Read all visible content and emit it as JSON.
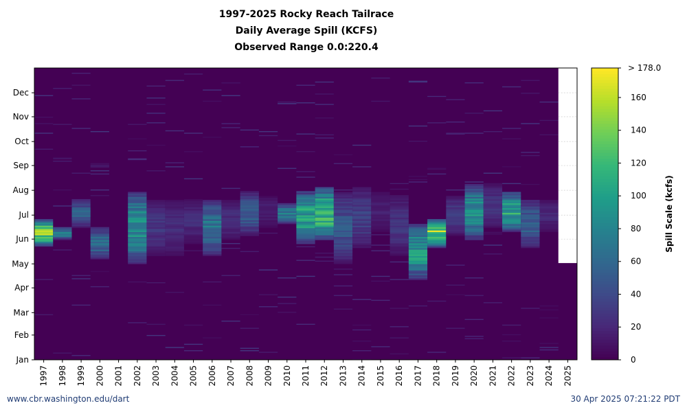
{
  "chart_data": {
    "type": "heatmap",
    "title_lines": [
      "1997-2025 Rocky Reach Tailrace",
      "Daily Average Spill (KCFS)",
      "Observed Range 0.0:220.4"
    ],
    "x_categories": [
      "1997",
      "1998",
      "1999",
      "2000",
      "2001",
      "2002",
      "2003",
      "2004",
      "2005",
      "2006",
      "2007",
      "2008",
      "2009",
      "2010",
      "2011",
      "2012",
      "2013",
      "2014",
      "2015",
      "2016",
      "2017",
      "2018",
      "2019",
      "2020",
      "2021",
      "2022",
      "2023",
      "2024",
      "2025"
    ],
    "y_ticks": [
      "Jan",
      "Feb",
      "Mar",
      "Apr",
      "May",
      "Jun",
      "Jul",
      "Aug",
      "Sep",
      "Oct",
      "Nov",
      "Dec"
    ],
    "colorbar": {
      "label": "Spill Scale (kcfs)",
      "ticks": [
        0,
        20,
        40,
        60,
        80,
        100,
        120,
        140,
        160
      ],
      "max_label": "> 178.0",
      "min": 0,
      "max": 178
    },
    "colormap": "viridis",
    "no_data_after": {
      "year": "2025",
      "day_of_year": 121
    },
    "seasonal_spill_kcfs": [
      {
        "year": "1997",
        "start_day": 142,
        "end_day": 175,
        "peak": 178
      },
      {
        "year": "1998",
        "start_day": 150,
        "end_day": 165,
        "peak": 95
      },
      {
        "year": "1999",
        "start_day": 165,
        "end_day": 200,
        "peak": 70
      },
      {
        "year": "2000",
        "start_day": 126,
        "end_day": 165,
        "peak": 80
      },
      {
        "year": "2001",
        "start_day": 0,
        "end_day": 0,
        "peak": 0
      },
      {
        "year": "2002",
        "start_day": 120,
        "end_day": 210,
        "peak": 115
      },
      {
        "year": "2003",
        "start_day": 130,
        "end_day": 200,
        "peak": 35
      },
      {
        "year": "2004",
        "start_day": 130,
        "end_day": 200,
        "peak": 30
      },
      {
        "year": "2005",
        "start_day": 145,
        "end_day": 200,
        "peak": 28
      },
      {
        "year": "2006",
        "start_day": 130,
        "end_day": 200,
        "peak": 90
      },
      {
        "year": "2007",
        "start_day": 150,
        "end_day": 200,
        "peak": 30
      },
      {
        "year": "2008",
        "start_day": 155,
        "end_day": 210,
        "peak": 65
      },
      {
        "year": "2009",
        "start_day": 165,
        "end_day": 205,
        "peak": 20
      },
      {
        "year": "2010",
        "start_day": 170,
        "end_day": 195,
        "peak": 95
      },
      {
        "year": "2011",
        "start_day": 145,
        "end_day": 210,
        "peak": 130
      },
      {
        "year": "2012",
        "start_day": 150,
        "end_day": 215,
        "peak": 155
      },
      {
        "year": "2013",
        "start_day": 120,
        "end_day": 210,
        "peak": 60
      },
      {
        "year": "2014",
        "start_day": 140,
        "end_day": 215,
        "peak": 45
      },
      {
        "year": "2015",
        "start_day": 160,
        "end_day": 210,
        "peak": 20
      },
      {
        "year": "2016",
        "start_day": 130,
        "end_day": 205,
        "peak": 35
      },
      {
        "year": "2017",
        "start_day": 100,
        "end_day": 170,
        "peak": 120
      },
      {
        "year": "2018",
        "start_day": 140,
        "end_day": 175,
        "peak": 178
      },
      {
        "year": "2019",
        "start_day": 155,
        "end_day": 205,
        "peak": 40
      },
      {
        "year": "2020",
        "start_day": 150,
        "end_day": 220,
        "peak": 115
      },
      {
        "year": "2021",
        "start_day": 165,
        "end_day": 220,
        "peak": 35
      },
      {
        "year": "2022",
        "start_day": 160,
        "end_day": 210,
        "peak": 130
      },
      {
        "year": "2023",
        "start_day": 140,
        "end_day": 200,
        "peak": 70
      },
      {
        "year": "2024",
        "start_day": 160,
        "end_day": 200,
        "peak": 25
      }
    ],
    "xlabel": "",
    "ylabel": ""
  },
  "footer": {
    "source": "www.cbr.washington.edu/dart",
    "timestamp": "30 Apr 2025 07:21:22 PDT"
  }
}
